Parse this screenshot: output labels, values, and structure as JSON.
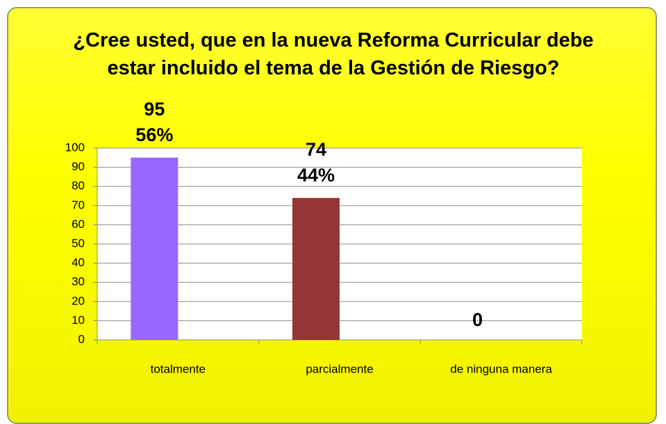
{
  "chart_data": {
    "type": "bar",
    "title": "¿Cree usted, que en la nueva Reforma Curricular debe estar incluido el tema de la Gestión de Riesgo?",
    "categories": [
      "totalmente",
      "parcialmente",
      "de ninguna manera"
    ],
    "values": [
      95,
      74,
      0
    ],
    "percent_labels": [
      "56%",
      "44%",
      null
    ],
    "colors": [
      "#9966ff",
      "#953735",
      "#9bbb59"
    ],
    "ylim": [
      0,
      100
    ],
    "yticks": [
      0,
      10,
      20,
      30,
      40,
      50,
      60,
      70,
      80,
      90,
      100
    ],
    "grid": true
  }
}
